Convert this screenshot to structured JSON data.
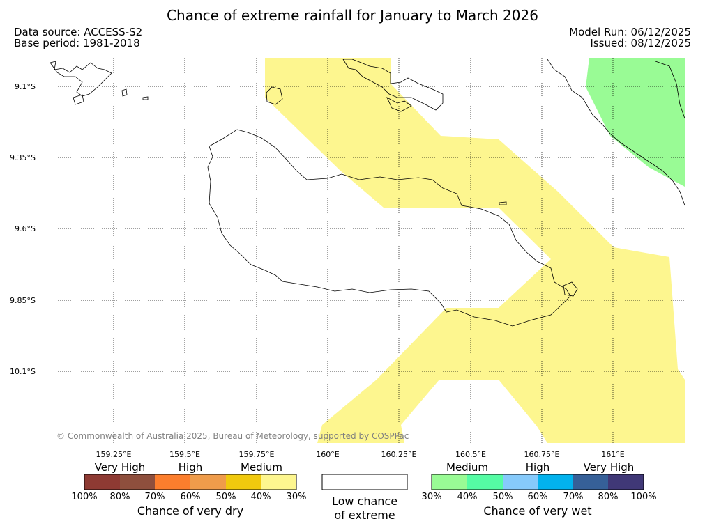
{
  "title": "Chance of extreme rainfall for January to March 2026",
  "data_source": "Data source: ACCESS-S2",
  "base_period": "Base period: 1981-2018",
  "model_run": "Model Run: 06/12/2025",
  "issued": "Issued: 08/12/2025",
  "copyright": "© Commonwealth of Australia 2025, Bureau of Meteorology, supported by COSPPac",
  "axes": {
    "lat_labels": [
      "9.1°S",
      "9.35°S",
      "9.6°S",
      "9.85°S",
      "10.1°S"
    ],
    "lon_labels": [
      "159.25°E",
      "159.5°E",
      "159.75°E",
      "160°E",
      "160.25°E",
      "160.5°E",
      "160.75°E",
      "161°E"
    ]
  },
  "colors": {
    "yellow_30_40": "#fdf68f",
    "green_30_40": "#99fb95"
  },
  "dry_legend": {
    "group_labels": [
      "Very High",
      "High",
      "Medium"
    ],
    "swatches": [
      "#8e3a33",
      "#8e4f3d",
      "#fc7e2d",
      "#ef9c4b",
      "#f0c90e",
      "#fdf68f"
    ],
    "percent_labels": [
      "100%",
      "80%",
      "70%",
      "60%",
      "50%",
      "40%",
      "30%"
    ],
    "caption": "Chance of very dry"
  },
  "low_legend": {
    "caption_line1": "Low chance",
    "caption_line2": "of extreme"
  },
  "wet_legend": {
    "group_labels": [
      "Medium",
      "High",
      "Very High"
    ],
    "swatches": [
      "#99fb95",
      "#55fca4",
      "#86cafb",
      "#02b2ed",
      "#366098",
      "#403877"
    ],
    "percent_labels": [
      "30%",
      "40%",
      "50%",
      "60%",
      "70%",
      "80%",
      "100%"
    ],
    "caption": "Chance of very wet"
  }
}
